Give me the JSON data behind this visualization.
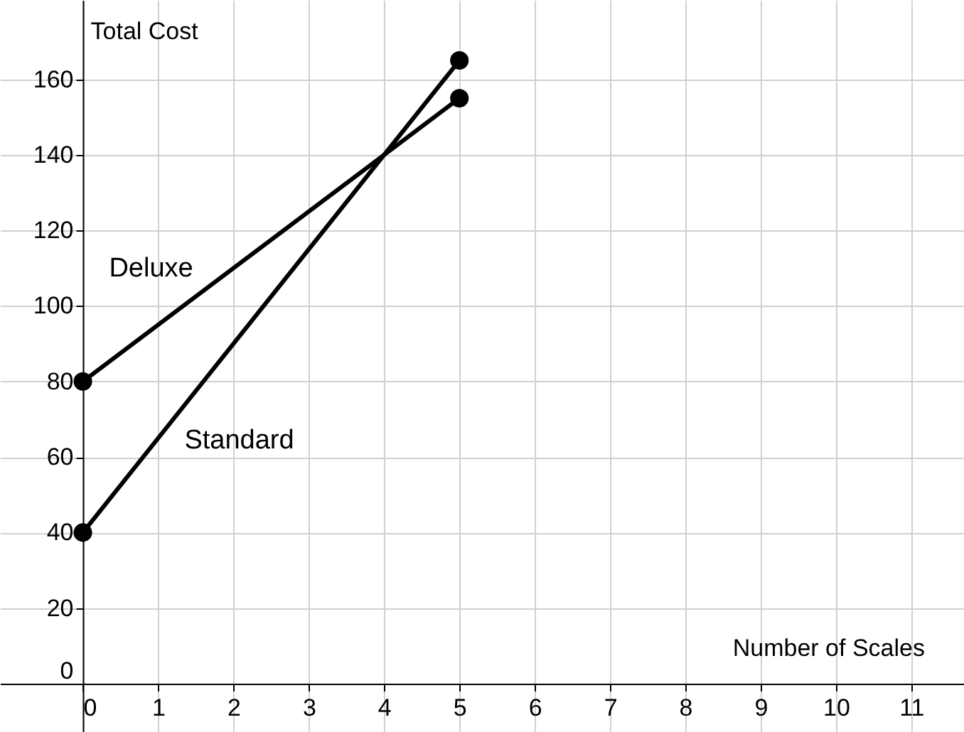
{
  "chart_data": {
    "type": "line",
    "xlabel": "Number of Scales",
    "ylabel": "Total Cost",
    "x": [
      0,
      5
    ],
    "series": [
      {
        "name": "Deluxe",
        "color": "#000000",
        "values": [
          80,
          155
        ]
      },
      {
        "name": "Standard",
        "color": "#000000",
        "values": [
          40,
          165
        ]
      }
    ],
    "xlim": [
      -1.1,
      11.7
    ],
    "ylim": [
      -12.8,
      181
    ],
    "xticks": [
      0,
      1,
      2,
      3,
      4,
      5,
      6,
      7,
      8,
      9,
      10,
      11
    ],
    "yticks": [
      0,
      20,
      40,
      60,
      80,
      100,
      120,
      140,
      160
    ],
    "grid": true,
    "marker": "circle",
    "line_style": "solid"
  }
}
